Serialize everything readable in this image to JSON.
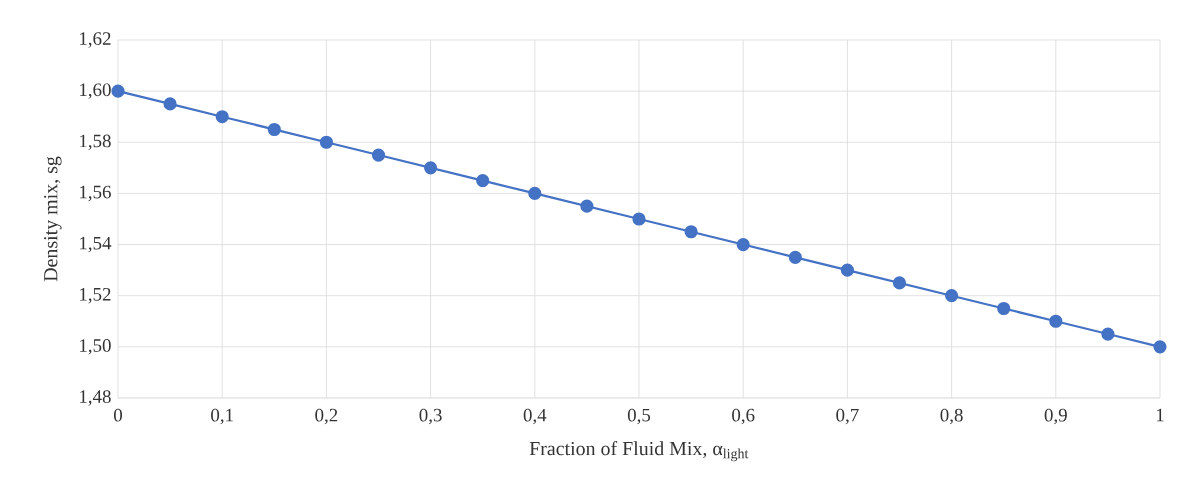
{
  "chart_data": {
    "type": "line",
    "xlabel": "Fraction of Fluid Mix, α$_{light}$",
    "ylabel": "Density mix, sg",
    "x": [
      0,
      0.05,
      0.1,
      0.15,
      0.2,
      0.25,
      0.3,
      0.35,
      0.4,
      0.45,
      0.5,
      0.55,
      0.6,
      0.65,
      0.7,
      0.75,
      0.8,
      0.85,
      0.9,
      0.95,
      1
    ],
    "series": [
      {
        "color": "#4472c4",
        "values": [
          1.6,
          1.595,
          1.59,
          1.585,
          1.58,
          1.575,
          1.57,
          1.565,
          1.56,
          1.555,
          1.55,
          1.545,
          1.54,
          1.535,
          1.53,
          1.525,
          1.52,
          1.515,
          1.51,
          1.505,
          1.5
        ]
      }
    ],
    "xlim": [
      0,
      1
    ],
    "ylim": [
      1.48,
      1.62
    ],
    "xticks": [
      0,
      {
        "value": 0.1,
        "label": "0,1"
      },
      {
        "value": 0.2,
        "label": "0,2"
      },
      {
        "value": 0.3,
        "label": "0,3"
      },
      {
        "value": 0.4,
        "label": "0,4"
      },
      {
        "value": 0.5,
        "label": "0,5"
      },
      {
        "value": 0.6,
        "label": "0,6"
      },
      {
        "value": 0.7,
        "label": "0,7"
      },
      {
        "value": 0.8,
        "label": "0,8"
      },
      {
        "value": 0.9,
        "label": "0,9"
      },
      1
    ],
    "yticks": [
      {
        "value": 1.48,
        "label": "1,48"
      },
      {
        "value": 1.5,
        "label": "1,50"
      },
      {
        "value": 1.52,
        "label": "1,52"
      },
      {
        "value": 1.54,
        "label": "1,54"
      },
      {
        "value": 1.56,
        "label": "1,56"
      },
      {
        "value": 1.58,
        "label": "1,58"
      },
      {
        "value": 1.6,
        "label": "1,60"
      },
      {
        "value": 1.62,
        "label": "1,62"
      }
    ],
    "grid": true,
    "marker": "circle",
    "line_style": "solid"
  }
}
